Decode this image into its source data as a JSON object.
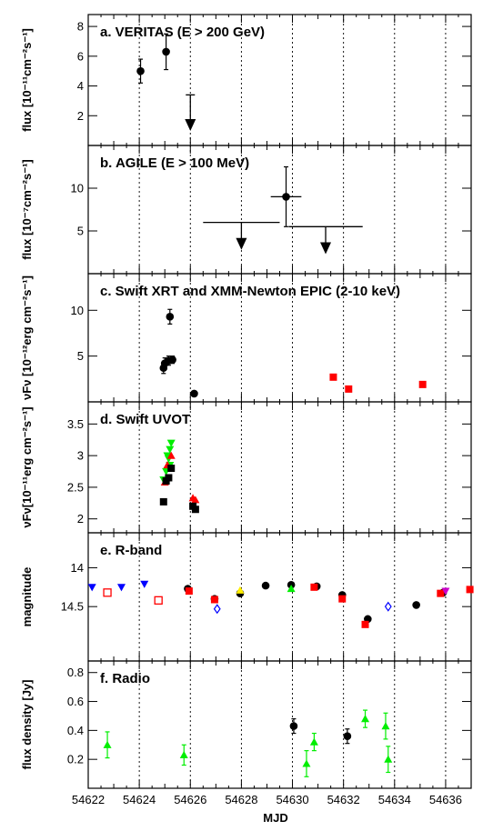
{
  "figure": {
    "xlabel": "MJD"
  },
  "chart_data": [
    {
      "type": "scatter",
      "panel": "a",
      "title": "a. VERITAS (E > 200 GeV)",
      "ylabel": "flux [10⁻¹¹cm⁻²s⁻¹]",
      "xlim": [
        54622,
        54637
      ],
      "ylim": [
        0,
        8.8
      ],
      "yticks": [
        2,
        4,
        6,
        8
      ],
      "points": [
        {
          "x": 54624.05,
          "y": 5.0,
          "err": 0.8
        },
        {
          "x": 54625.05,
          "y": 6.3,
          "err": 1.2
        }
      ],
      "upper_limits": [
        {
          "x": 54626.0,
          "y": 3.4,
          "to": 1.1
        }
      ]
    },
    {
      "type": "scatter",
      "panel": "b",
      "title": "b. AGILE (E > 100 MeV)",
      "ylabel": "flux [10⁻⁷cm⁻²s⁻¹]",
      "xlim": [
        54622,
        54637
      ],
      "ylim": [
        0,
        15
      ],
      "yticks": [
        5,
        10
      ],
      "points": [
        {
          "x": 54629.75,
          "y": 9.0,
          "err": 3.5,
          "xerr": 0.6
        }
      ],
      "upper_limits": [
        {
          "x": 54628.0,
          "y": 6.0,
          "to": 3.0,
          "xerr": 1.5
        },
        {
          "x": 54631.3,
          "y": 5.5,
          "to": 2.5,
          "xerr": 1.45
        }
      ]
    },
    {
      "type": "scatter",
      "panel": "c",
      "title": "c. Swift XRT and XMM-Newton EPIC (2-10 keV)",
      "ylabel": "νFν [10⁻¹²erg cm⁻²s⁻¹]",
      "xlim": [
        54622,
        54637
      ],
      "ylim": [
        0,
        14
      ],
      "yticks": [
        5,
        10
      ],
      "series": [
        {
          "name": "Swift XRT",
          "marker": "circle",
          "color": "#000000",
          "points": [
            [
              54624.95,
              3.7,
              0.6
            ],
            [
              54625.0,
              4.2,
              0.6
            ],
            [
              54625.15,
              4.5,
              0.5
            ],
            [
              54625.2,
              9.3,
              0.8
            ],
            [
              54625.3,
              4.6,
              0.4
            ],
            [
              54626.15,
              0.9,
              0.15
            ]
          ]
        },
        {
          "name": "XMM-Newton EPIC",
          "marker": "square",
          "color": "#ff0000",
          "points": [
            [
              54631.6,
              2.7,
              0
            ],
            [
              54632.2,
              1.4,
              0
            ],
            [
              54635.1,
              1.9,
              0
            ]
          ]
        }
      ]
    },
    {
      "type": "scatter",
      "panel": "d",
      "title": "d. Swift UVOT",
      "ylabel": "νFν[10⁻¹¹erg cm⁻²s⁻¹]",
      "xlim": [
        54622,
        54637
      ],
      "ylim": [
        1.78,
        3.85
      ],
      "yticks": [
        2,
        2.5,
        3,
        3.5
      ],
      "series": [
        {
          "name": "",
          "marker": "tri-down",
          "color": "#00ee00",
          "points": [
            [
              54624.95,
              2.62
            ],
            [
              54625.05,
              2.75
            ],
            [
              54625.1,
              3.0
            ],
            [
              54625.15,
              2.95
            ],
            [
              54625.2,
              3.1
            ],
            [
              54625.25,
              3.2
            ],
            [
              54625.2,
              2.85
            ]
          ]
        },
        {
          "name": "",
          "marker": "tri-up",
          "color": "#ff0000",
          "points": [
            [
              54625.0,
              2.58
            ],
            [
              54625.1,
              2.85
            ],
            [
              54625.25,
              3.0
            ],
            [
              54626.1,
              2.33
            ],
            [
              54626.2,
              2.3
            ]
          ]
        },
        {
          "name": "",
          "marker": "square",
          "color": "#000000",
          "points": [
            [
              54624.95,
              2.27
            ],
            [
              54625.05,
              2.6
            ],
            [
              54625.15,
              2.65
            ],
            [
              54625.25,
              2.8
            ],
            [
              54626.1,
              2.2
            ],
            [
              54626.2,
              2.15
            ]
          ]
        }
      ]
    },
    {
      "type": "scatter",
      "panel": "e",
      "title": "e. R-band",
      "ylabel": "magnitude",
      "xlim": [
        54622,
        54637
      ],
      "ylim": [
        13.55,
        15.2
      ],
      "yreversed": true,
      "yticks": [
        14,
        14.5
      ],
      "series": [
        {
          "name": "",
          "marker": "tri-down",
          "color": "#0000ff",
          "points": [
            [
              54622.15,
              14.25
            ],
            [
              54623.3,
              14.25
            ],
            [
              54624.2,
              14.21
            ]
          ]
        },
        {
          "name": "",
          "marker": "circle",
          "color": "#000000",
          "points": [
            [
              54625.9,
              14.27
            ],
            [
              54626.95,
              14.4
            ],
            [
              54627.95,
              14.33
            ],
            [
              54628.95,
              14.23
            ],
            [
              54629.95,
              14.22
            ],
            [
              54630.95,
              14.24
            ],
            [
              54631.95,
              14.35
            ],
            [
              54632.95,
              14.66
            ],
            [
              54634.85,
              14.48
            ],
            [
              54635.9,
              14.32
            ]
          ]
        },
        {
          "name": "",
          "marker": "square",
          "color": "#ff0000",
          "points": [
            [
              54625.95,
              14.3
            ],
            [
              54626.95,
              14.41
            ],
            [
              54630.85,
              14.25
            ],
            [
              54631.95,
              14.4
            ],
            [
              54632.85,
              14.73
            ],
            [
              54635.8,
              14.33
            ],
            [
              54636.95,
              14.28
            ]
          ]
        },
        {
          "name": "",
          "marker": "square-open",
          "color": "#ff0000",
          "points": [
            [
              54622.75,
              14.32
            ],
            [
              54624.75,
              14.42
            ]
          ]
        },
        {
          "name": "",
          "marker": "diamond-open",
          "color": "#0000ff",
          "points": [
            [
              54627.05,
              14.53
            ],
            [
              54633.75,
              14.5
            ]
          ]
        },
        {
          "name": "",
          "marker": "tri-up",
          "color": "#00ee00",
          "points": [
            [
              54629.95,
              14.27
            ]
          ]
        },
        {
          "name": "",
          "marker": "tri-up",
          "color": "#ffee00",
          "points": [
            [
              54627.95,
              14.29
            ]
          ]
        },
        {
          "name": "",
          "marker": "tri-down",
          "color": "#cc00cc",
          "points": [
            [
              54636.0,
              14.3
            ]
          ]
        }
      ]
    },
    {
      "type": "scatter",
      "panel": "f",
      "title": "f. Radio",
      "ylabel": "flux density [Jy]",
      "xlim": [
        54622,
        54637
      ],
      "ylim": [
        0,
        0.88
      ],
      "yticks": [
        0.2,
        0.4,
        0.6,
        0.8
      ],
      "xticks": [
        54622,
        54624,
        54626,
        54628,
        54630,
        54632,
        54634,
        54636
      ],
      "series": [
        {
          "name": "",
          "marker": "tri-up",
          "color": "#00ee00",
          "points": [
            [
              54622.75,
              0.3,
              0.09
            ],
            [
              54625.75,
              0.23,
              0.07
            ],
            [
              54630.55,
              0.17,
              0.09
            ],
            [
              54630.85,
              0.32,
              0.06
            ],
            [
              54632.85,
              0.48,
              0.06
            ],
            [
              54633.65,
              0.43,
              0.09
            ],
            [
              54633.75,
              0.2,
              0.09
            ]
          ]
        },
        {
          "name": "",
          "marker": "circle",
          "color": "#000000",
          "points": [
            [
              54630.05,
              0.43,
              0.05
            ],
            [
              54632.15,
              0.36,
              0.05
            ]
          ]
        }
      ]
    }
  ]
}
